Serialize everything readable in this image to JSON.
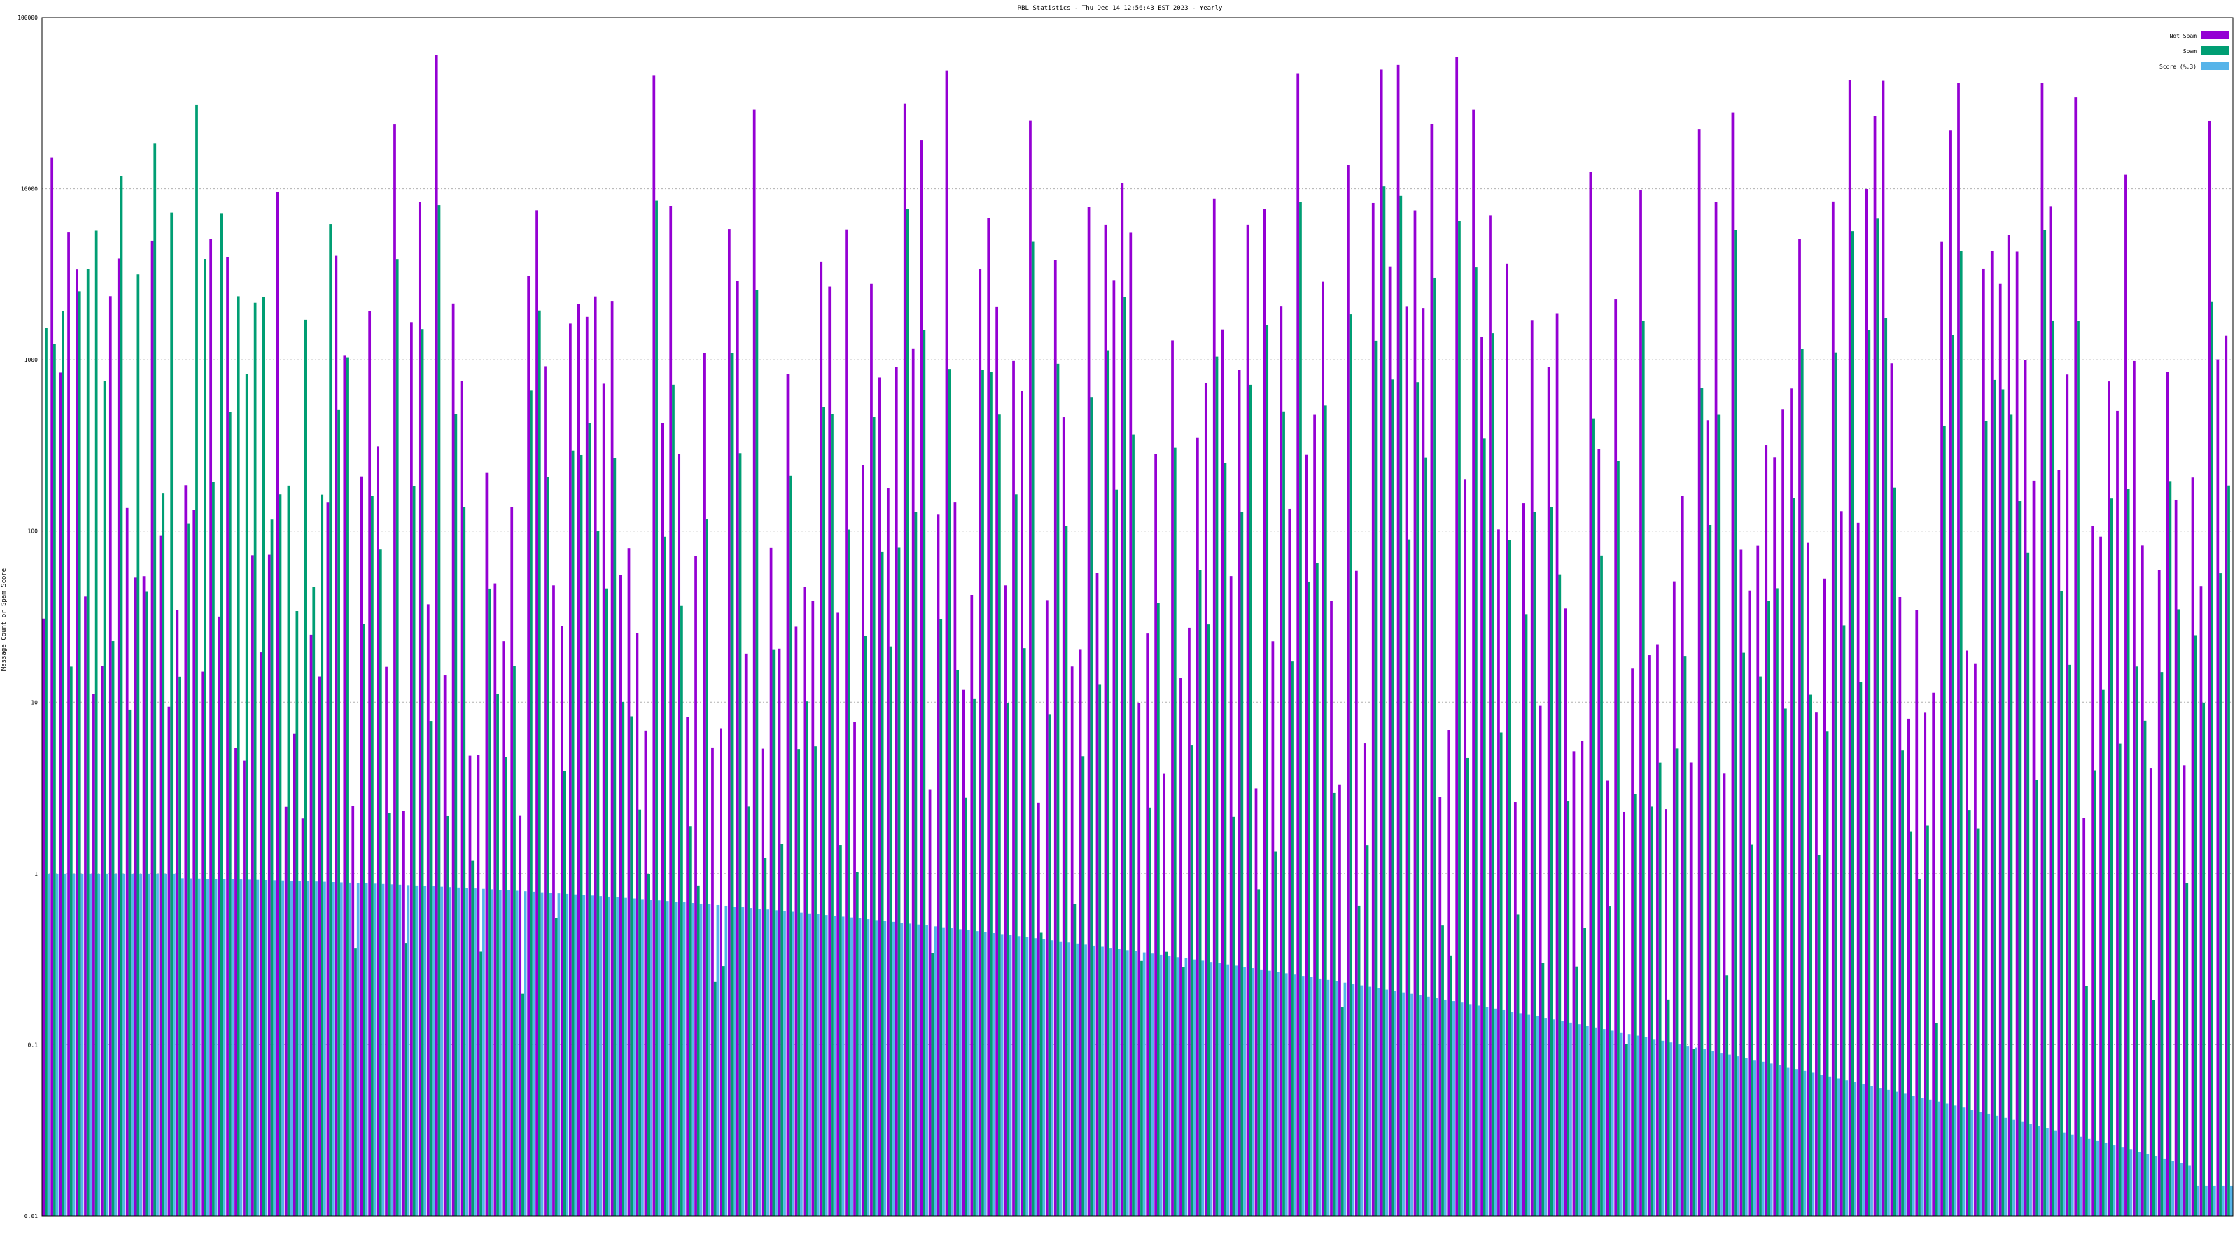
{
  "chart_data": {
    "type": "bar",
    "title": "RBL Statistics - Thu Dec 14 12:56:43 EST 2023 - Yearly",
    "ylabel": "Massage Count or Spam Score",
    "yscale": "log",
    "ylim": [
      0.01,
      100000
    ],
    "yticks": [
      "0.01",
      "0.1",
      "1",
      "10",
      "100",
      "1000",
      "10000",
      "100000"
    ],
    "grid": true,
    "legend_position": "top-right",
    "series": [
      {
        "name": "Not Spam",
        "color": "#9400d3",
        "role": "not_spam"
      },
      {
        "name": "Spam",
        "color": "#009e73",
        "role": "spam"
      },
      {
        "name": "Score (%.3)",
        "color": "#56b4e9",
        "role": "score"
      }
    ],
    "bar_group_count": 262,
    "notes_on_data": "Values per RBL group estimated from the rendered bars on a log scale; category tick labels are illegible in the screenshot."
  }
}
